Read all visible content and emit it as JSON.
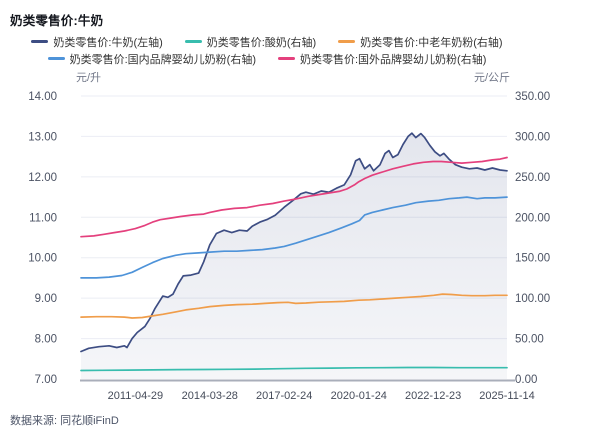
{
  "title": "奶类零售价:牛奶",
  "source": "数据来源: 同花顺iFinD",
  "legend": {
    "items": [
      {
        "label": "奶类零售价:牛奶(左轴)",
        "color": "#3d4d83"
      },
      {
        "label": "奶类零售价:酸奶(右轴)",
        "color": "#38bdae"
      },
      {
        "label": "奶类零售价:中老年奶粉(右轴)",
        "color": "#f09d4a"
      },
      {
        "label": "奶类零售价:国内品牌婴幼儿奶粉(右轴)",
        "color": "#4e93d9"
      },
      {
        "label": "奶类零售价:国外品牌婴幼儿奶粉(右轴)",
        "color": "#e4407d"
      }
    ]
  },
  "chart_data": {
    "type": "line",
    "title": "奶类零售价:牛奶",
    "legend_position": "top",
    "grid": "horizontal",
    "x_domain": [
      2009.2,
      2025.87
    ],
    "x_ticks": [
      "2011-04-29",
      "2014-03-28",
      "2017-02-24",
      "2020-01-24",
      "2022-12-23",
      "2025-11-14"
    ],
    "x_tick_positions": [
      2011.33,
      2014.24,
      2017.15,
      2020.07,
      2022.98,
      2025.87
    ],
    "y_left": {
      "unit": "元/升",
      "min": 7,
      "max": 14,
      "ticks": [
        "7.00",
        "8.00",
        "9.00",
        "10.00",
        "11.00",
        "12.00",
        "13.00",
        "14.00"
      ]
    },
    "y_right": {
      "unit": "元/公斤",
      "min": 0,
      "max": 350,
      "ticks": [
        "0.00",
        "50.00",
        "100.00",
        "150.00",
        "200.00",
        "250.00",
        "300.00",
        "350.00"
      ]
    },
    "series": [
      {
        "id": "milk",
        "name": "奶类零售价:牛奶(左轴)",
        "axis": "left",
        "color": "#3d4d83",
        "area": true,
        "x": [
          2009.2,
          2009.5,
          2009.9,
          2010.3,
          2010.6,
          2010.9,
          2011.0,
          2011.2,
          2011.4,
          2011.7,
          2011.9,
          2012.1,
          2012.4,
          2012.6,
          2012.8,
          2013.0,
          2013.2,
          2013.5,
          2013.8,
          2014.0,
          2014.24,
          2014.5,
          2014.8,
          2015.1,
          2015.4,
          2015.7,
          2015.9,
          2016.2,
          2016.5,
          2016.8,
          2017.15,
          2017.5,
          2017.8,
          2018.0,
          2018.3,
          2018.6,
          2018.9,
          2019.2,
          2019.5,
          2019.75,
          2019.95,
          2020.1,
          2020.3,
          2020.5,
          2020.65,
          2020.9,
          2021.1,
          2021.25,
          2021.4,
          2021.6,
          2021.8,
          2022.0,
          2022.15,
          2022.3,
          2022.5,
          2022.65,
          2022.85,
          2023.05,
          2023.25,
          2023.4,
          2023.6,
          2023.85,
          2024.1,
          2024.4,
          2024.7,
          2025.0,
          2025.3,
          2025.6,
          2025.87
        ],
        "y": [
          7.68,
          7.76,
          7.8,
          7.82,
          7.78,
          7.82,
          7.78,
          8.0,
          8.15,
          8.3,
          8.5,
          8.75,
          9.05,
          9.02,
          9.1,
          9.35,
          9.55,
          9.57,
          9.62,
          9.9,
          10.32,
          10.6,
          10.68,
          10.62,
          10.68,
          10.66,
          10.78,
          10.88,
          10.95,
          11.05,
          11.25,
          11.42,
          11.58,
          11.62,
          11.57,
          11.65,
          11.62,
          11.72,
          11.8,
          12.05,
          12.4,
          12.45,
          12.2,
          12.3,
          12.15,
          12.3,
          12.58,
          12.65,
          12.48,
          12.55,
          12.8,
          13.0,
          13.08,
          12.97,
          13.07,
          12.97,
          12.78,
          12.62,
          12.52,
          12.58,
          12.44,
          12.3,
          12.24,
          12.2,
          12.22,
          12.17,
          12.22,
          12.17,
          12.15
        ]
      },
      {
        "id": "yogurt",
        "name": "奶类零售价:酸奶(右轴)",
        "axis": "right",
        "color": "#38bdae",
        "area": false,
        "x": [
          2009.2,
          2010.0,
          2011.0,
          2012.0,
          2013.0,
          2014.0,
          2015.0,
          2016.0,
          2017.0,
          2018.0,
          2019.0,
          2020.0,
          2021.0,
          2022.0,
          2023.0,
          2024.0,
          2025.0,
          2025.87
        ],
        "y": [
          10.5,
          10.8,
          11.0,
          11.3,
          11.6,
          11.8,
          12.0,
          12.3,
          12.8,
          13.2,
          13.5,
          13.8,
          14.0,
          14.2,
          14.2,
          14.0,
          14.0,
          14.0
        ]
      },
      {
        "id": "elder-milk-powder",
        "name": "奶类零售价:中老年奶粉(右轴)",
        "axis": "right",
        "color": "#f09d4a",
        "area": false,
        "x": [
          2009.2,
          2009.8,
          2010.4,
          2010.9,
          2011.2,
          2011.6,
          2012.0,
          2012.4,
          2012.9,
          2013.3,
          2013.8,
          2014.24,
          2014.8,
          2015.3,
          2015.9,
          2016.4,
          2016.9,
          2017.3,
          2017.6,
          2018.0,
          2018.5,
          2019.0,
          2019.5,
          2020.07,
          2020.5,
          2021.0,
          2021.5,
          2022.0,
          2022.5,
          2023.0,
          2023.35,
          2023.7,
          2024.1,
          2024.5,
          2025.0,
          2025.4,
          2025.87
        ],
        "y": [
          76.5,
          77,
          77,
          76.5,
          75.5,
          76,
          78,
          80,
          83,
          85.5,
          87.5,
          89.5,
          91,
          92,
          92.5,
          93.5,
          94.5,
          94.8,
          93.5,
          94,
          95,
          95.5,
          96,
          97.5,
          98,
          99,
          100,
          101,
          102,
          103.5,
          105,
          104.5,
          103.5,
          103,
          103,
          103.5,
          103.5
        ]
      },
      {
        "id": "domestic-infant-formula",
        "name": "奶类零售价:国内品牌婴幼儿奶粉(右轴)",
        "axis": "right",
        "color": "#4e93d9",
        "area": false,
        "x": [
          2009.2,
          2009.8,
          2010.3,
          2010.8,
          2011.2,
          2011.6,
          2012.0,
          2012.4,
          2012.9,
          2013.3,
          2013.8,
          2014.24,
          2014.8,
          2015.3,
          2015.8,
          2016.3,
          2016.8,
          2017.15,
          2017.6,
          2018.0,
          2018.4,
          2018.9,
          2019.4,
          2019.8,
          2020.1,
          2020.3,
          2020.6,
          2021.0,
          2021.4,
          2021.9,
          2022.3,
          2022.8,
          2023.2,
          2023.6,
          2024.0,
          2024.3,
          2024.7,
          2025.0,
          2025.4,
          2025.87
        ],
        "y": [
          125,
          125,
          126,
          128,
          132,
          138,
          144,
          149,
          153,
          155,
          156,
          157,
          158,
          158,
          159,
          160,
          162,
          164,
          168,
          172,
          176,
          181,
          187,
          192,
          196,
          203,
          206,
          209,
          212,
          215,
          218,
          220,
          221,
          223,
          224,
          225,
          223,
          224,
          224,
          225
        ]
      },
      {
        "id": "foreign-infant-formula",
        "name": "奶类零售价:国外品牌婴幼儿奶粉(右轴)",
        "axis": "right",
        "color": "#e4407d",
        "area": false,
        "x": [
          2009.2,
          2009.7,
          2010.1,
          2010.5,
          2010.9,
          2011.33,
          2011.7,
          2012.0,
          2012.3,
          2012.7,
          2013.1,
          2013.6,
          2014.0,
          2014.24,
          2014.7,
          2015.2,
          2015.7,
          2016.2,
          2016.7,
          2017.15,
          2017.5,
          2017.8,
          2018.1,
          2018.5,
          2018.9,
          2019.3,
          2019.6,
          2019.9,
          2020.07,
          2020.3,
          2020.6,
          2021.0,
          2021.4,
          2021.8,
          2022.2,
          2022.6,
          2022.98,
          2023.3,
          2023.7,
          2024.1,
          2024.5,
          2024.9,
          2025.3,
          2025.6,
          2025.87
        ],
        "y": [
          176,
          177,
          179,
          181,
          183,
          186,
          190,
          194,
          197,
          199,
          201,
          203,
          204,
          206,
          209,
          211,
          212,
          215,
          217,
          220,
          222,
          224,
          226,
          228,
          230,
          232,
          235,
          240,
          244,
          248,
          252,
          256,
          260,
          263,
          266,
          268,
          269,
          269,
          268,
          267,
          268,
          269,
          271,
          272,
          274
        ]
      }
    ]
  }
}
